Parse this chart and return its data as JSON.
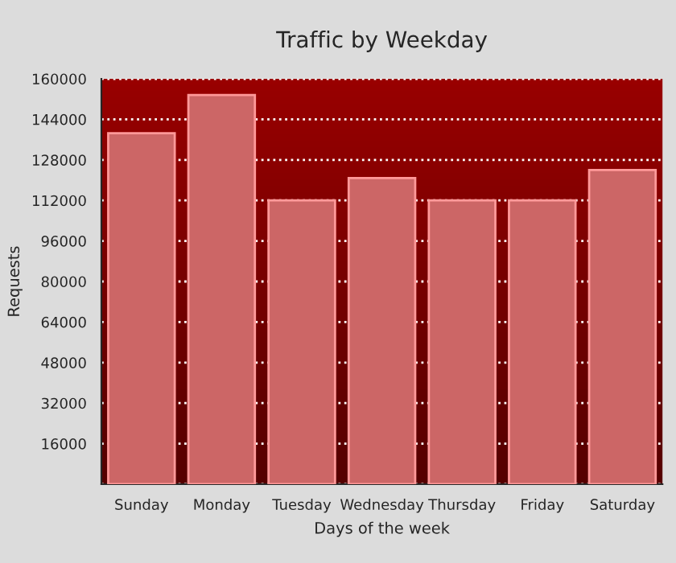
{
  "chart_data": {
    "type": "bar",
    "title": "Traffic by Weekday",
    "xlabel": "Days of the week",
    "ylabel": "Requests",
    "categories": [
      "Sunday",
      "Monday",
      "Tuesday",
      "Wednesday",
      "Thursday",
      "Friday",
      "Saturday"
    ],
    "values": [
      138500,
      153600,
      112000,
      120800,
      112000,
      112000,
      124000
    ],
    "color": "#cc6666",
    "ylim": [
      0,
      160000
    ],
    "yticks": [
      {
        "value": 0,
        "label": null
      },
      16000,
      32000,
      48000,
      64000,
      80000,
      96000,
      112000,
      128000,
      144000,
      160000
    ],
    "grid": "y"
  }
}
